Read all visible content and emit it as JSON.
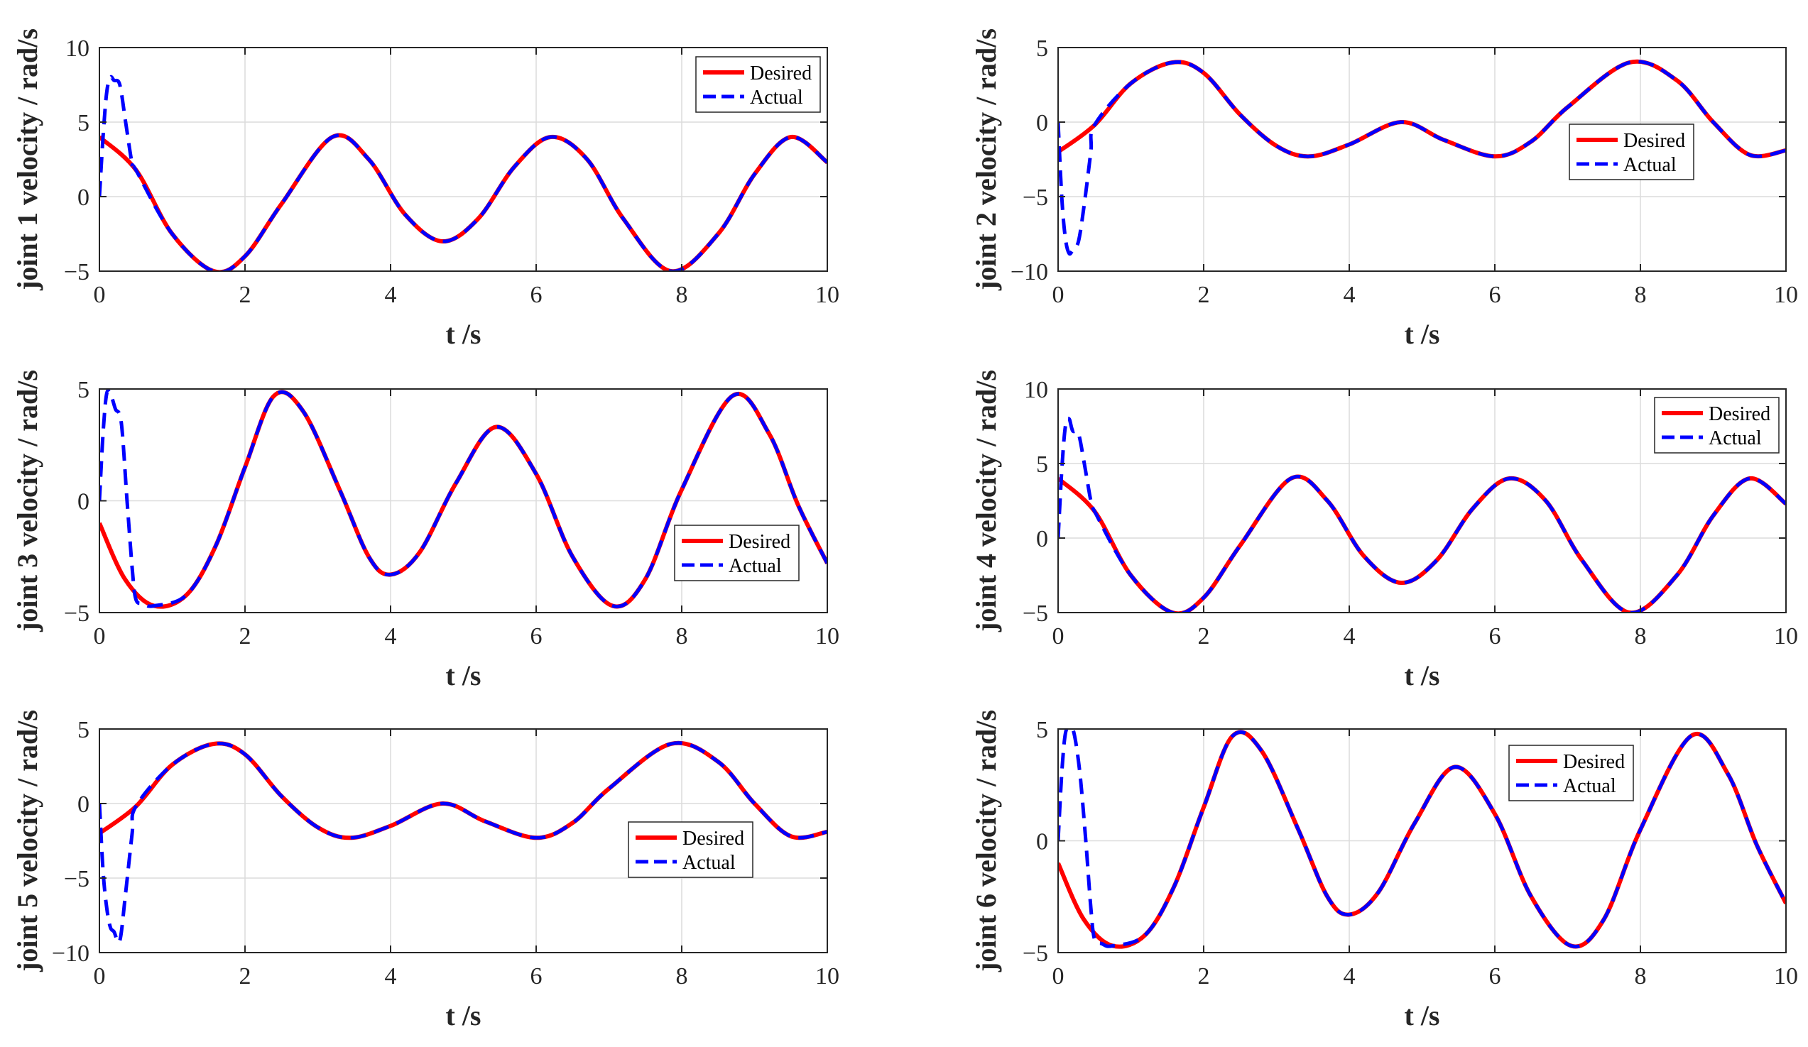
{
  "colors": {
    "desired": "#ff0000",
    "actual": "#0000ff"
  },
  "chart_data": [
    {
      "type": "line",
      "ylabel": "joint 1 velocity / rad/s",
      "xlabel": "t /s",
      "xlim": [
        0,
        10
      ],
      "ylim": [
        -5,
        10
      ],
      "xticks": [
        0,
        2,
        4,
        6,
        8,
        10
      ],
      "yticks": [
        -5,
        0,
        5,
        10
      ],
      "ytick_labels": [
        "−5",
        "0",
        "5",
        "10"
      ],
      "xtick_labels": [
        "0",
        "2",
        "4",
        "6",
        "8",
        "10"
      ],
      "legend": {
        "position": "top-right",
        "entries": [
          "Desired",
          "Actual"
        ]
      },
      "series": [
        {
          "name": "Desired",
          "x": [
            0,
            0.5,
            1,
            1.57,
            2,
            2.5,
            3.2,
            3.7,
            4.2,
            4.71,
            5.2,
            5.7,
            6.2,
            6.7,
            7.2,
            7.85,
            8.5,
            9,
            9.5,
            10
          ],
          "y": [
            4.0,
            1.8,
            -2.5,
            -5.0,
            -4.0,
            -0.5,
            4.0,
            2.5,
            -1.2,
            -3.0,
            -1.5,
            2.0,
            4.0,
            2.5,
            -1.5,
            -5.0,
            -2.5,
            1.5,
            4.0,
            2.3
          ]
        },
        {
          "name": "Actual",
          "x": [
            0,
            0.05,
            0.1,
            0.15,
            0.2,
            0.28,
            0.36,
            0.45,
            0.5,
            1,
            1.57,
            2,
            2.5,
            3.2,
            3.7,
            4.2,
            4.71,
            5.2,
            5.7,
            6.2,
            6.7,
            7.2,
            7.85,
            8.5,
            9,
            9.5,
            10
          ],
          "y": [
            0,
            4.0,
            7.0,
            8.0,
            7.8,
            7.5,
            5.0,
            2.2,
            1.8,
            -2.5,
            -5.0,
            -4.0,
            -0.5,
            4.0,
            2.5,
            -1.2,
            -3.0,
            -1.5,
            2.0,
            4.0,
            2.5,
            -1.5,
            -5.0,
            -2.5,
            1.5,
            4.0,
            2.3
          ]
        }
      ]
    },
    {
      "type": "line",
      "ylabel": "joint 2 velocity / rad/s",
      "xlabel": "t /s",
      "xlim": [
        0,
        10
      ],
      "ylim": [
        -10,
        5
      ],
      "xticks": [
        0,
        2,
        4,
        6,
        8,
        10
      ],
      "yticks": [
        -10,
        -5,
        0,
        5
      ],
      "ytick_labels": [
        "−10",
        "−5",
        "0",
        "5"
      ],
      "xtick_labels": [
        "0",
        "2",
        "4",
        "6",
        "8",
        "10"
      ],
      "legend": {
        "position": "center-right",
        "entries": [
          "Desired",
          "Actual"
        ]
      },
      "series": [
        {
          "name": "Desired",
          "x": [
            0,
            0.5,
            1,
            1.57,
            2,
            2.5,
            3,
            3.45,
            4,
            4.71,
            5.3,
            6,
            6.5,
            7,
            7.85,
            8.5,
            9,
            9.5,
            10
          ],
          "y": [
            -2.0,
            -0.2,
            2.6,
            4.0,
            3.3,
            0.5,
            -1.6,
            -2.3,
            -1.5,
            0.0,
            -1.2,
            -2.3,
            -1.3,
            1.0,
            4.0,
            2.8,
            0.0,
            -2.2,
            -1.9
          ]
        },
        {
          "name": "Actual",
          "x": [
            0,
            0.05,
            0.1,
            0.15,
            0.2,
            0.28,
            0.36,
            0.45,
            0.5,
            1,
            1.57,
            2,
            2.5,
            3,
            3.45,
            4,
            4.71,
            5.3,
            6,
            6.5,
            7,
            7.85,
            8.5,
            9,
            9.5,
            10
          ],
          "y": [
            0,
            -5.0,
            -7.8,
            -8.8,
            -8.6,
            -8.0,
            -5.5,
            -2.0,
            -0.2,
            2.6,
            4.0,
            3.3,
            0.5,
            -1.6,
            -2.3,
            -1.5,
            0.0,
            -1.2,
            -2.3,
            -1.3,
            1.0,
            4.0,
            2.8,
            0.0,
            -2.2,
            -1.9
          ]
        }
      ]
    },
    {
      "type": "line",
      "ylabel": "joint 3 velocity / rad/s",
      "xlabel": "t /s",
      "xlim": [
        0,
        10
      ],
      "ylim": [
        -5,
        5
      ],
      "xticks": [
        0,
        2,
        4,
        6,
        8,
        10
      ],
      "yticks": [
        -5,
        0,
        5
      ],
      "ytick_labels": [
        "−5",
        "0",
        "5"
      ],
      "xtick_labels": [
        "0",
        "2",
        "4",
        "6",
        "8",
        "10"
      ],
      "legend": {
        "position": "bottom-right",
        "entries": [
          "Desired",
          "Actual"
        ]
      },
      "series": [
        {
          "name": "Desired",
          "x": [
            0,
            0.35,
            0.75,
            1.2,
            1.6,
            2,
            2.4,
            2.8,
            3.3,
            3.7,
            4,
            4.4,
            4.9,
            5.45,
            6,
            6.5,
            7.05,
            7.5,
            8,
            8.7,
            9.2,
            9.6,
            10
          ],
          "y": [
            -1.0,
            -3.5,
            -4.7,
            -4.2,
            -2.0,
            1.5,
            4.7,
            4.0,
            0.5,
            -2.5,
            -3.3,
            -2.3,
            0.8,
            3.3,
            1.2,
            -2.5,
            -4.7,
            -3.5,
            0.5,
            4.7,
            3.0,
            -0.2,
            -2.8
          ]
        },
        {
          "name": "Actual",
          "x": [
            0,
            0.05,
            0.1,
            0.16,
            0.22,
            0.3,
            0.38,
            0.45,
            0.5,
            0.6,
            0.75,
            1.2,
            1.6,
            2,
            2.4,
            2.8,
            3.3,
            3.7,
            4,
            4.4,
            4.9,
            5.45,
            6,
            6.5,
            7.05,
            7.5,
            8,
            8.7,
            9.2,
            9.6,
            10
          ],
          "y": [
            0,
            3.0,
            4.8,
            4.7,
            4.1,
            3.5,
            0.0,
            -3.0,
            -4.4,
            -4.6,
            -4.7,
            -4.2,
            -2.0,
            1.5,
            4.7,
            4.0,
            0.5,
            -2.5,
            -3.3,
            -2.3,
            0.8,
            3.3,
            1.2,
            -2.5,
            -4.7,
            -3.5,
            0.5,
            4.7,
            3.0,
            -0.2,
            -2.8
          ]
        }
      ]
    },
    {
      "type": "line",
      "ylabel": "joint 4 velocity / rad/s",
      "xlabel": "t /s",
      "xlim": [
        0,
        10
      ],
      "ylim": [
        -5,
        10
      ],
      "xticks": [
        0,
        2,
        4,
        6,
        8,
        10
      ],
      "yticks": [
        -5,
        0,
        5,
        10
      ],
      "ytick_labels": [
        "−5",
        "0",
        "5",
        "10"
      ],
      "xtick_labels": [
        "0",
        "2",
        "4",
        "6",
        "8",
        "10"
      ],
      "legend": {
        "position": "top-right",
        "entries": [
          "Desired",
          "Actual"
        ]
      },
      "series": [
        {
          "name": "Desired",
          "x": [
            0,
            0.5,
            1,
            1.57,
            2,
            2.5,
            3.2,
            3.7,
            4.2,
            4.71,
            5.2,
            5.7,
            6.2,
            6.7,
            7.2,
            7.85,
            8.5,
            9,
            9.5,
            10
          ],
          "y": [
            4.0,
            1.8,
            -2.5,
            -5.0,
            -4.0,
            -0.5,
            4.0,
            2.5,
            -1.2,
            -3.0,
            -1.5,
            2.0,
            4.0,
            2.5,
            -1.5,
            -5.0,
            -2.5,
            1.5,
            4.0,
            2.3
          ]
        },
        {
          "name": "Actual",
          "x": [
            0,
            0.05,
            0.1,
            0.15,
            0.2,
            0.28,
            0.36,
            0.45,
            0.5,
            1,
            1.57,
            2,
            2.5,
            3.2,
            3.7,
            4.2,
            4.71,
            5.2,
            5.7,
            6.2,
            6.7,
            7.2,
            7.85,
            8.5,
            9,
            9.5,
            10
          ],
          "y": [
            0,
            4.5,
            7.5,
            8.0,
            7.2,
            7.0,
            5.0,
            2.5,
            1.8,
            -2.5,
            -5.0,
            -4.0,
            -0.5,
            4.0,
            2.5,
            -1.2,
            -3.0,
            -1.5,
            2.0,
            4.0,
            2.5,
            -1.5,
            -5.0,
            -2.5,
            1.5,
            4.0,
            2.3
          ]
        }
      ]
    },
    {
      "type": "line",
      "ylabel": "joint 5 velocity / rad/s",
      "xlabel": "t /s",
      "xlim": [
        0,
        10
      ],
      "ylim": [
        -10,
        5
      ],
      "xticks": [
        0,
        2,
        4,
        6,
        8,
        10
      ],
      "yticks": [
        -10,
        -5,
        0,
        5
      ],
      "ytick_labels": [
        "−10",
        "−5",
        "0",
        "5"
      ],
      "xtick_labels": [
        "0",
        "2",
        "4",
        "6",
        "8",
        "10"
      ],
      "legend": {
        "position": "center-right",
        "entries": [
          "Desired",
          "Actual"
        ]
      },
      "series": [
        {
          "name": "Desired",
          "x": [
            0,
            0.5,
            1,
            1.57,
            2,
            2.5,
            3,
            3.45,
            4,
            4.71,
            5.3,
            6,
            6.5,
            7,
            7.85,
            8.5,
            9,
            9.5,
            10
          ],
          "y": [
            -2.0,
            -0.2,
            2.6,
            4.0,
            3.3,
            0.5,
            -1.6,
            -2.3,
            -1.5,
            0.0,
            -1.2,
            -2.3,
            -1.3,
            1.0,
            4.0,
            2.8,
            0.0,
            -2.2,
            -1.9
          ]
        },
        {
          "name": "Actual",
          "x": [
            0,
            0.05,
            0.1,
            0.15,
            0.2,
            0.28,
            0.36,
            0.45,
            0.5,
            1,
            1.57,
            2,
            2.5,
            3,
            3.45,
            4,
            4.71,
            5.3,
            6,
            6.5,
            7,
            7.85,
            8.5,
            9,
            9.5,
            10
          ],
          "y": [
            0,
            -4.5,
            -7.0,
            -8.3,
            -8.6,
            -9.2,
            -6.0,
            -2.0,
            -0.2,
            2.6,
            4.0,
            3.3,
            0.5,
            -1.6,
            -2.3,
            -1.5,
            0.0,
            -1.2,
            -2.3,
            -1.3,
            1.0,
            4.0,
            2.8,
            0.0,
            -2.2,
            -1.9
          ]
        }
      ]
    },
    {
      "type": "line",
      "ylabel": "joint 6 velocity / rad/s",
      "xlabel": "t /s",
      "xlim": [
        0,
        10
      ],
      "ylim": [
        -5,
        5
      ],
      "xticks": [
        0,
        2,
        4,
        6,
        8,
        10
      ],
      "yticks": [
        -5,
        0,
        5
      ],
      "ytick_labels": [
        "−5",
        "0",
        "5"
      ],
      "xtick_labels": [
        "0",
        "2",
        "4",
        "6",
        "8",
        "10"
      ],
      "legend": {
        "position": "top-right",
        "entries": [
          "Desired",
          "Actual"
        ]
      },
      "series": [
        {
          "name": "Desired",
          "x": [
            0,
            0.35,
            0.75,
            1.2,
            1.6,
            2,
            2.4,
            2.8,
            3.3,
            3.7,
            4,
            4.4,
            4.9,
            5.45,
            6,
            6.5,
            7.05,
            7.5,
            8,
            8.7,
            9.2,
            9.6,
            10
          ],
          "y": [
            -1.0,
            -3.5,
            -4.7,
            -4.2,
            -2.0,
            1.5,
            4.7,
            4.0,
            0.5,
            -2.5,
            -3.3,
            -2.3,
            0.8,
            3.3,
            1.2,
            -2.5,
            -4.7,
            -3.5,
            0.5,
            4.7,
            3.0,
            -0.2,
            -2.8
          ]
        },
        {
          "name": "Actual",
          "x": [
            0,
            0.05,
            0.1,
            0.16,
            0.22,
            0.3,
            0.38,
            0.45,
            0.5,
            0.6,
            0.75,
            1.2,
            1.6,
            2,
            2.4,
            2.8,
            3.3,
            3.7,
            4,
            4.4,
            4.9,
            5.45,
            6,
            6.5,
            7.05,
            7.5,
            8,
            8.7,
            9.2,
            9.6,
            10
          ],
          "y": [
            0,
            3.0,
            4.8,
            5.0,
            4.8,
            3.0,
            0.0,
            -3.0,
            -4.4,
            -4.6,
            -4.7,
            -4.2,
            -2.0,
            1.5,
            4.7,
            4.0,
            0.5,
            -2.5,
            -3.3,
            -2.3,
            0.8,
            3.3,
            1.2,
            -2.5,
            -4.7,
            -3.5,
            0.5,
            4.7,
            3.0,
            -0.2,
            -2.8
          ]
        }
      ]
    }
  ]
}
